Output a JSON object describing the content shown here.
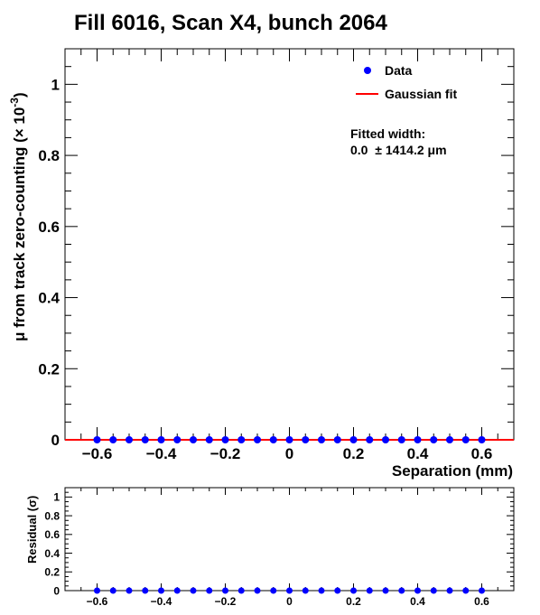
{
  "chart_data": [
    {
      "type": "scatter",
      "title": "Fill 6016, Scan X4, bunch 2064",
      "xlabel": "Separation (mm)",
      "ylabel_main": "μ from track zero-counting (× 10",
      "ylabel_exp": "-3",
      "ylabel_close": ")",
      "xlim": [
        -0.7,
        0.7
      ],
      "ylim": [
        0,
        1.1
      ],
      "x_ticks": [
        "−0.6",
        "−0.4",
        "−0.2",
        "0",
        "0.2",
        "0.4",
        "0.6"
      ],
      "y_ticks": [
        "0",
        "0.2",
        "0.4",
        "0.6",
        "0.8",
        "1"
      ],
      "grid": false,
      "legend_position": "top-right",
      "series": [
        {
          "name": "Data",
          "marker_color": "#0000ff",
          "x": [
            -0.6,
            -0.55,
            -0.5,
            -0.45,
            -0.4,
            -0.35,
            -0.3,
            -0.25,
            -0.2,
            -0.15,
            -0.1,
            -0.05,
            0.0,
            0.05,
            0.1,
            0.15,
            0.2,
            0.25,
            0.3,
            0.35,
            0.4,
            0.45,
            0.5,
            0.55,
            0.6
          ],
          "y": [
            0,
            0,
            0,
            0,
            0,
            0,
            0,
            0,
            0,
            0,
            0,
            0,
            0,
            0,
            0,
            0,
            0,
            0,
            0,
            0,
            0,
            0,
            0,
            0,
            0
          ]
        },
        {
          "name": "Gaussian fit",
          "line_color": "#ff0000",
          "x": [
            -0.7,
            0.7
          ],
          "y": [
            0,
            0
          ]
        }
      ],
      "annotation": {
        "line1": "Fitted width:",
        "line2": "0.0  ± 1414.2 μm"
      }
    },
    {
      "type": "scatter",
      "title": "",
      "ylabel": "Residual (σ)",
      "xlim": [
        -0.7,
        0.7
      ],
      "ylim": [
        0,
        1.1
      ],
      "x_ticks": [
        "−0.6",
        "−0.4",
        "−0.2",
        "0",
        "0.2",
        "0.4",
        "0.6"
      ],
      "y_ticks": [
        "0",
        "0.2",
        "0.4",
        "0.6",
        "0.8",
        "1"
      ],
      "series": [
        {
          "name": "",
          "marker_color": "#0000ff",
          "x": [
            -0.6,
            -0.55,
            -0.5,
            -0.45,
            -0.4,
            -0.35,
            -0.3,
            -0.25,
            -0.2,
            -0.15,
            -0.1,
            -0.05,
            0.0,
            0.05,
            0.1,
            0.15,
            0.2,
            0.25,
            0.3,
            0.35,
            0.4,
            0.45,
            0.5,
            0.55,
            0.6
          ],
          "y": [
            0,
            0,
            0,
            0,
            0,
            0,
            0,
            0,
            0,
            0,
            0,
            0,
            0,
            0,
            0,
            0,
            0,
            0,
            0,
            0,
            0,
            0,
            0,
            0,
            0
          ]
        }
      ]
    }
  ]
}
